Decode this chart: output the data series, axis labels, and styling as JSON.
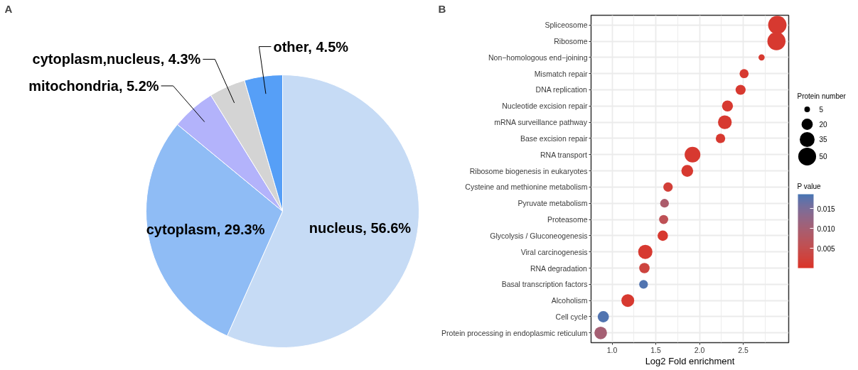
{
  "chart_data": [
    {
      "type": "pie",
      "title": "A",
      "categories": [
        "nucleus",
        "cytoplasm",
        "mitochondria",
        "cytoplasm,nucleus",
        "other"
      ],
      "values": [
        56.6,
        29.3,
        5.2,
        4.3,
        4.5
      ],
      "colors": [
        "#c6dbf5",
        "#8fbcf5",
        "#b3b3fb",
        "#d4d4d4",
        "#569ff7"
      ],
      "value_labels": [
        "56.6%",
        "29.3%",
        "5.2%",
        "4.3%",
        "4.5%"
      ]
    },
    {
      "type": "bubble",
      "title": "B",
      "orientation": "horizontal",
      "categories": [
        "Spliceosome",
        "Ribosome",
        "Non−homologous end−joining",
        "Mismatch repair",
        "DNA replication",
        "Nucleotide excision repair",
        "mRNA surveillance pathway",
        "Base excision repair",
        "RNA transport",
        "Ribosome biogenesis in eukaryotes",
        "Cysteine and methionine metabolism",
        "Pyruvate metabolism",
        "Proteasome",
        "Glycolysis / Gluconeogenesis",
        "Viral carcinogenesis",
        "RNA degradation",
        "Basal transcription factors",
        "Alcoholism",
        "Cell cycle",
        "Protein processing in endoplasmic reticulum"
      ],
      "values": [
        2.89,
        2.88,
        2.71,
        2.51,
        2.47,
        2.32,
        2.29,
        2.24,
        1.92,
        1.86,
        1.64,
        1.6,
        1.59,
        1.58,
        1.38,
        1.37,
        1.36,
        1.18,
        0.9,
        0.87
      ],
      "sizes": [
        53,
        52,
        6,
        13,
        16,
        19,
        30,
        14,
        39,
        22,
        14,
        12,
        13,
        17,
        32,
        17,
        12,
        26,
        20,
        25
      ],
      "cvalues": [
        0.001,
        0.001,
        0.001,
        0.001,
        0.001,
        0.001,
        0.001,
        0.001,
        0.001,
        0.001,
        0.002,
        0.009,
        0.006,
        0.001,
        0.001,
        0.003,
        0.018,
        0.001,
        0.018,
        0.01
      ],
      "size_legend": [
        5,
        20,
        35,
        50
      ],
      "legend_title": "Protein number",
      "clabel": "P value",
      "clim": [
        0,
        0.0186
      ],
      "cticks": [
        0.005,
        {
          "value": 0.01,
          "label": "0.010"
        },
        0.015
      ],
      "xlim": [
        0.76,
        3.02
      ],
      "xticks": [
        {
          "value": 1,
          "label": "1.0"
        },
        1.5,
        {
          "value": 2,
          "label": "2.0"
        },
        2.5
      ],
      "xlabel": "Log2 Fold enrichment",
      "grid": true
    }
  ]
}
